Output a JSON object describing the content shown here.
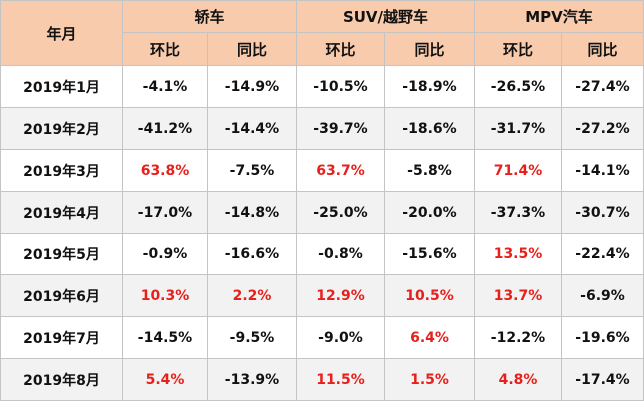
{
  "table": {
    "corner": "年月",
    "groups": [
      "轿车",
      "SUV/越野车",
      "MPV汽车"
    ],
    "subheaders": [
      "环比",
      "同比",
      "环比",
      "同比",
      "环比",
      "同比"
    ],
    "positive_color": "#e8201c",
    "rows": [
      [
        "2019年1月",
        "-4.1%",
        "-14.9%",
        "-10.5%",
        "-18.9%",
        "-26.5%",
        "-27.4%"
      ],
      [
        "2019年2月",
        "-41.2%",
        "-14.4%",
        "-39.7%",
        "-18.6%",
        "-31.7%",
        "-27.2%"
      ],
      [
        "2019年3月",
        "63.8%",
        "-7.5%",
        "63.7%",
        "-5.8%",
        "71.4%",
        "-14.1%"
      ],
      [
        "2019年4月",
        "-17.0%",
        "-14.8%",
        "-25.0%",
        "-20.0%",
        "-37.3%",
        "-30.7%"
      ],
      [
        "2019年5月",
        "-0.9%",
        "-16.6%",
        "-0.8%",
        "-15.6%",
        "13.5%",
        "-22.4%"
      ],
      [
        "2019年6月",
        "10.3%",
        "2.2%",
        "12.9%",
        "10.5%",
        "13.7%",
        "-6.9%"
      ],
      [
        "2019年7月",
        "-14.5%",
        "-9.5%",
        "-9.0%",
        "6.4%",
        "-12.2%",
        "-19.6%"
      ],
      [
        "2019年8月",
        "5.4%",
        "-13.9%",
        "11.5%",
        "1.5%",
        "4.8%",
        "-17.4%"
      ]
    ]
  }
}
